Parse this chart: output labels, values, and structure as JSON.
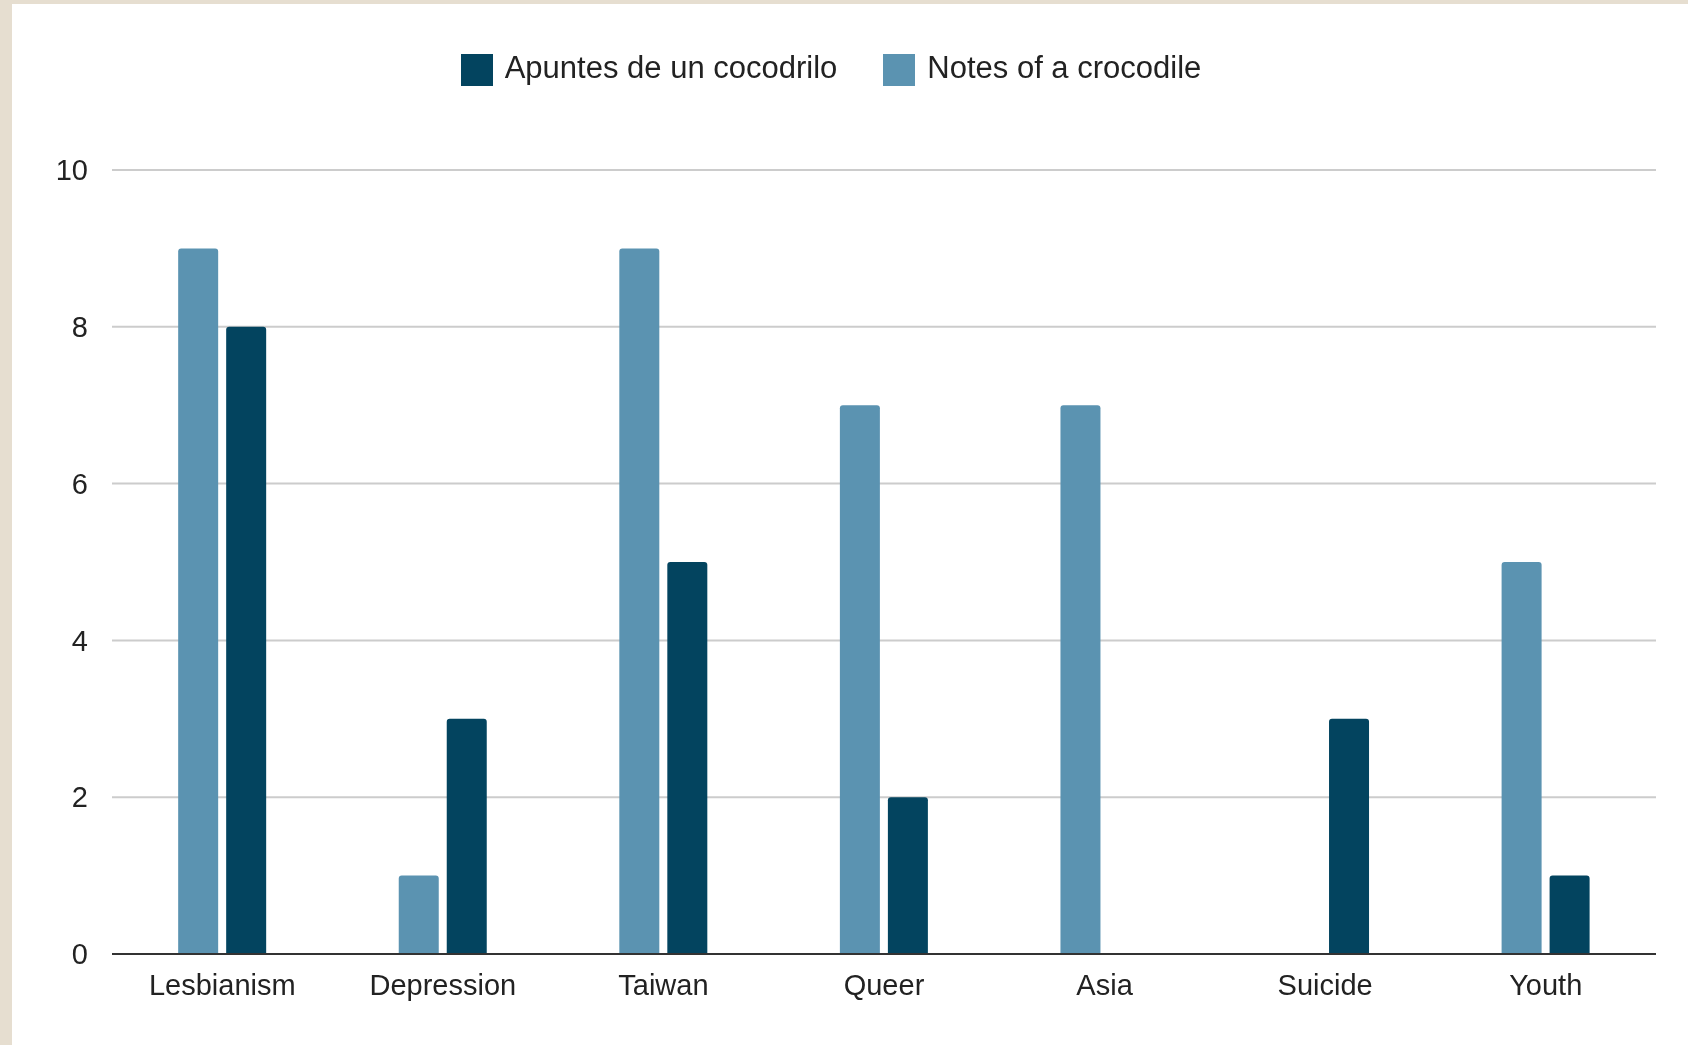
{
  "chart_data": {
    "type": "bar",
    "categories": [
      "Lesbianism",
      "Depression",
      "Taiwan",
      "Queer",
      "Asia",
      "Suicide",
      "Youth"
    ],
    "series": [
      {
        "name": "Notes of a crocodile",
        "color": "#5b93b1",
        "values": [
          9,
          1,
          9,
          7,
          7,
          0,
          5
        ]
      },
      {
        "name": "Apuntes de un cocodrilo",
        "color": "#03445f",
        "values": [
          8,
          3,
          5,
          2,
          0,
          3,
          1
        ]
      }
    ],
    "ylim": [
      0,
      10
    ],
    "yticks": [
      0,
      2,
      4,
      6,
      8,
      10
    ],
    "grid": "y",
    "legend": "top"
  }
}
